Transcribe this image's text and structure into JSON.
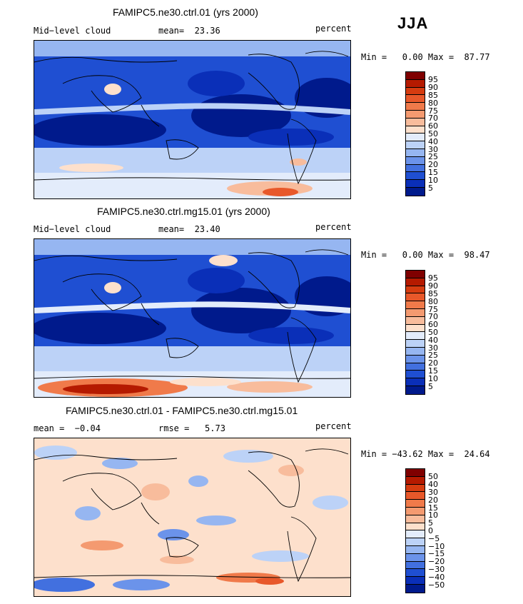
{
  "season": "JJA",
  "panels": [
    {
      "title": "FAMIPC5.ne30.ctrl.01 (yrs 2000)",
      "left_label": "Mid−level cloud",
      "mid_label": "mean=  23.36",
      "right_label": "percent",
      "minmax": "Min =   0.00 Max =  87.77",
      "colorbar": {
        "levels": [
          "95",
          "90",
          "85",
          "80",
          "75",
          "70",
          "60",
          "50",
          "40",
          "30",
          "25",
          "20",
          "15",
          "10",
          "5"
        ],
        "colors": [
          "#7f0000",
          "#b51a00",
          "#d63c10",
          "#e8582a",
          "#f07a4a",
          "#f49a70",
          "#f8bc9c",
          "#fde0cc",
          "#e3ecfb",
          "#bcd2f7",
          "#96b6f1",
          "#6b93ea",
          "#4270df",
          "#1f4fd2",
          "#0a2fb8",
          "#001a8c"
        ]
      }
    },
    {
      "title": "FAMIPC5.ne30.ctrl.mg15.01 (yrs 2000)",
      "left_label": "Mid−level cloud",
      "mid_label": "mean=  23.40",
      "right_label": "percent",
      "minmax": "Min =   0.00 Max =  98.47",
      "colorbar": {
        "levels": [
          "95",
          "90",
          "85",
          "80",
          "75",
          "70",
          "60",
          "50",
          "40",
          "30",
          "25",
          "20",
          "15",
          "10",
          "5"
        ],
        "colors": [
          "#7f0000",
          "#b51a00",
          "#d63c10",
          "#e8582a",
          "#f07a4a",
          "#f49a70",
          "#f8bc9c",
          "#fde0cc",
          "#e3ecfb",
          "#bcd2f7",
          "#96b6f1",
          "#6b93ea",
          "#4270df",
          "#1f4fd2",
          "#0a2fb8",
          "#001a8c"
        ]
      }
    },
    {
      "title": "FAMIPC5.ne30.ctrl.01 - FAMIPC5.ne30.ctrl.mg15.01",
      "left_label": "mean =  −0.04",
      "mid_label": "rmse =   5.73",
      "right_label": "percent",
      "minmax": "Min = −43.62 Max =  24.64",
      "colorbar": {
        "levels": [
          "50",
          "40",
          "30",
          "20",
          "15",
          "10",
          "5",
          "0",
          "−5",
          "−10",
          "−15",
          "−20",
          "−30",
          "−40",
          "−50"
        ],
        "colors": [
          "#7f0000",
          "#b51a00",
          "#d63c10",
          "#e8582a",
          "#f07a4a",
          "#f49a70",
          "#f8bc9c",
          "#fde0cc",
          "#e3ecfb",
          "#bcd2f7",
          "#96b6f1",
          "#6b93ea",
          "#4270df",
          "#1f4fd2",
          "#0a2fb8",
          "#001a8c"
        ]
      }
    }
  ]
}
